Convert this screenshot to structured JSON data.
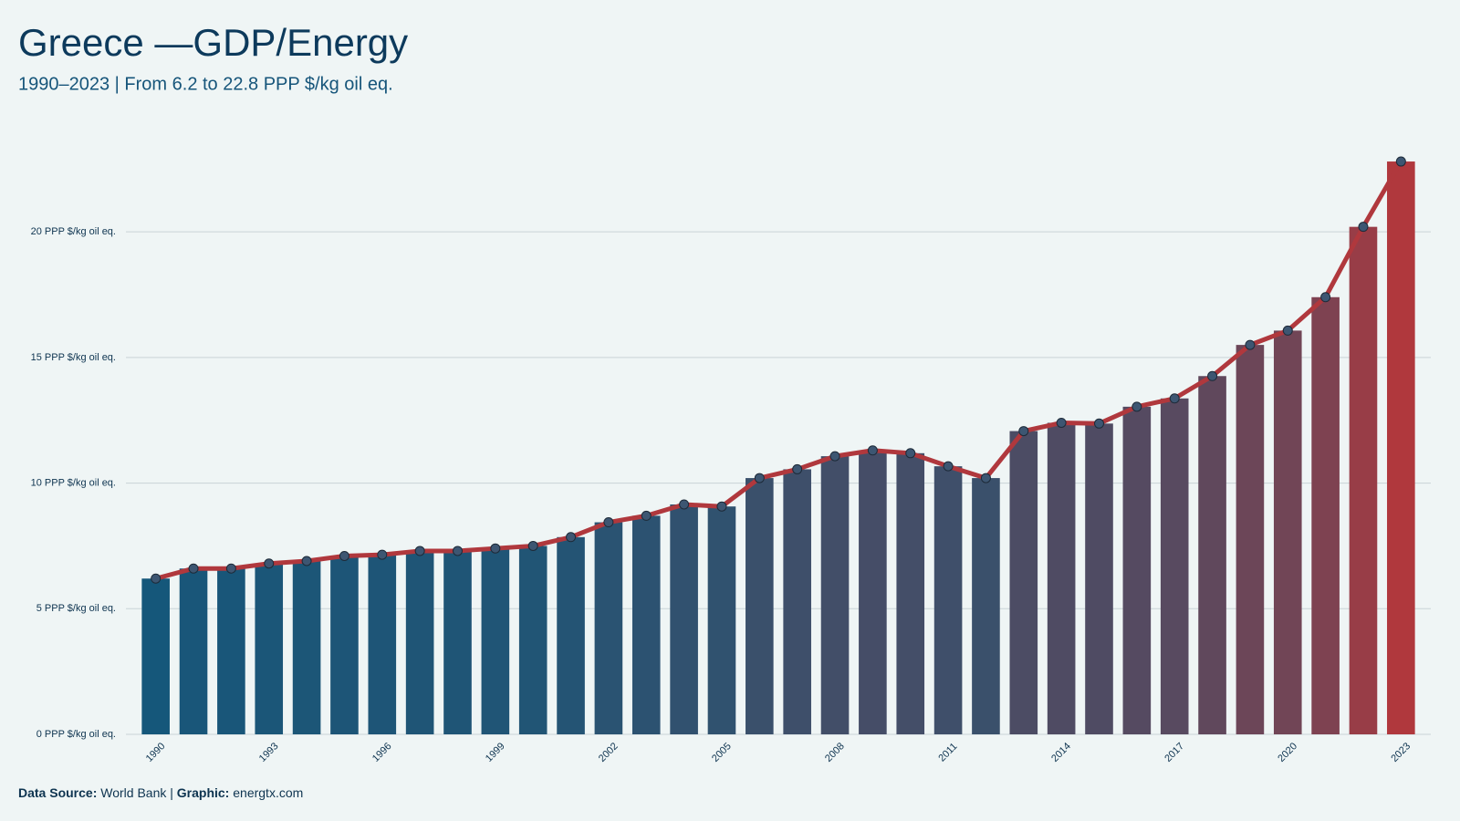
{
  "chart_data": {
    "type": "bar_line",
    "title": "Greece —GDP/Energy",
    "subtitle": "1990–2023 | From 6.2 to 22.8 PPP $/kg oil eq.",
    "x": [
      1990,
      1991,
      1992,
      1993,
      1994,
      1995,
      1996,
      1997,
      1998,
      1999,
      2000,
      2001,
      2002,
      2003,
      2004,
      2005,
      2006,
      2007,
      2008,
      2009,
      2010,
      2011,
      2012,
      2013,
      2014,
      2015,
      2016,
      2017,
      2018,
      2019,
      2020,
      2021,
      2022,
      2023
    ],
    "values": [
      6.2,
      6.6,
      6.6,
      6.8,
      6.9,
      7.1,
      7.15,
      7.3,
      7.3,
      7.4,
      7.5,
      7.85,
      8.44,
      8.7,
      9.15,
      9.07,
      10.2,
      10.55,
      11.07,
      11.3,
      11.19,
      10.67,
      10.2,
      12.07,
      12.4,
      12.37,
      13.04,
      13.37,
      14.26,
      15.5,
      16.07,
      17.4,
      20.2,
      22.8
    ],
    "xlim": [
      1989.5,
      2023.5
    ],
    "xticks": [
      1990,
      1993,
      1996,
      1999,
      2002,
      2005,
      2008,
      2011,
      2014,
      2017,
      2020,
      2023
    ],
    "ylim": [
      0,
      24
    ],
    "yticks": [
      {
        "value": 0,
        "label": "0 PPP $/kg oil eq."
      },
      {
        "value": 5,
        "label": "5 PPP $/kg oil eq."
      },
      {
        "value": 10,
        "label": "10 PPP $/kg oil eq."
      },
      {
        "value": 15,
        "label": "15 PPP $/kg oil eq."
      },
      {
        "value": 20,
        "label": "20 PPP $/kg oil eq."
      }
    ],
    "grid": true,
    "bar_colors": [
      "#15577a",
      "#b0383d"
    ],
    "line_color": "#b0383d",
    "marker_color": "#3d5672",
    "source_label": "Data Source:",
    "source": "World Bank |",
    "graphic_label": "Graphic:",
    "graphic": "energtx.com"
  }
}
